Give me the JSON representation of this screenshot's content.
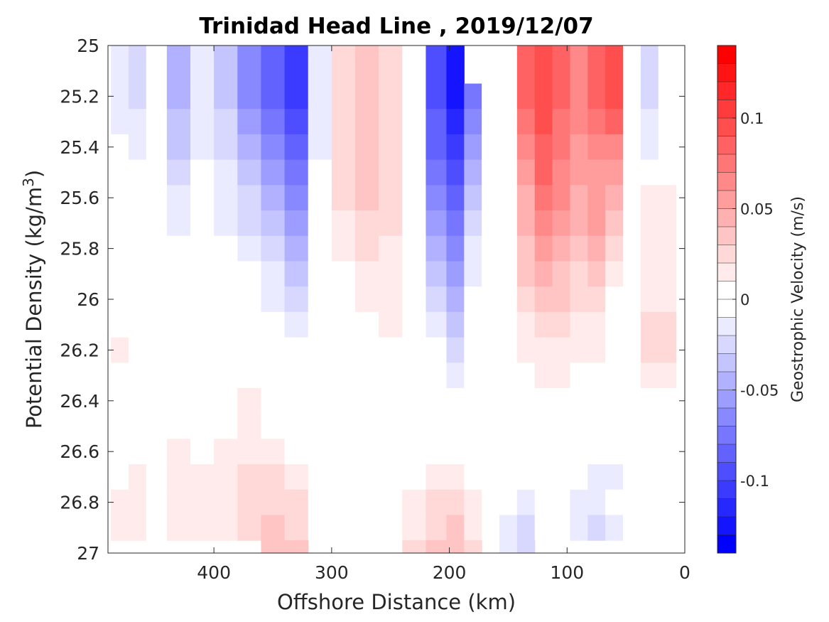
{
  "chart_data": {
    "type": "heatmap",
    "title": "Trinidad Head Line , 2019/12/07",
    "xlabel": "Offshore Distance (km)",
    "ylabel_main": "Potential Density (kg/m",
    "ylabel_sup": "3",
    "ylabel_end": ")",
    "xlim": [
      490,
      0
    ],
    "ylim": [
      25,
      27
    ],
    "x_reversed": true,
    "y_reversed": true,
    "x_ticks": [
      {
        "value": 400,
        "label": "400"
      },
      {
        "value": 300,
        "label": "300"
      },
      {
        "value": 200,
        "label": "200"
      },
      {
        "value": 100,
        "label": "100"
      },
      {
        "value": 0,
        "label": "0"
      }
    ],
    "y_ticks": [
      {
        "value": 25,
        "label": "25"
      },
      {
        "value": 25.2,
        "label": "25.2"
      },
      {
        "value": 25.4,
        "label": "25.4"
      },
      {
        "value": 25.6,
        "label": "25.6"
      },
      {
        "value": 25.8,
        "label": "25.8"
      },
      {
        "value": 26,
        "label": "26"
      },
      {
        "value": 26.2,
        "label": "26.2"
      },
      {
        "value": 26.4,
        "label": "26.4"
      },
      {
        "value": 26.6,
        "label": "26.6"
      },
      {
        "value": 26.8,
        "label": "26.8"
      },
      {
        "value": 27,
        "label": "27"
      }
    ],
    "colorbar": {
      "label": "Geostrophic Velocity (m/s)",
      "min": -0.14,
      "max": 0.14,
      "levels": 28,
      "colormap": "blue-white-red",
      "color_negative": "#0000ff",
      "color_zero": "#ffffff",
      "color_positive": "#ff0000",
      "ticks": [
        {
          "value": 0.1,
          "label": "0.1"
        },
        {
          "value": 0.05,
          "label": "0.05"
        },
        {
          "value": 0,
          "label": "0"
        },
        {
          "value": -0.05,
          "label": "-0.05"
        },
        {
          "value": -0.1,
          "label": "-0.1"
        }
      ]
    },
    "x": [
      480,
      465,
      450,
      430,
      410,
      390,
      370,
      350,
      330,
      310,
      290,
      270,
      250,
      230,
      210,
      195,
      180,
      165,
      150,
      135,
      120,
      105,
      90,
      75,
      60,
      45,
      30,
      15
    ],
    "y": [
      25.0,
      25.1,
      25.2,
      25.3,
      25.4,
      25.5,
      25.6,
      25.7,
      25.8,
      25.9,
      26.0,
      26.1,
      26.2,
      26.3,
      26.4,
      26.5,
      26.6,
      26.7,
      26.8,
      26.9,
      27.0
    ],
    "values": [
      [
        -0.02,
        -0.03,
        0.005,
        -0.05,
        -0.02,
        -0.04,
        -0.07,
        -0.09,
        -0.11,
        -0.02,
        0.02,
        0.03,
        0.02,
        0.0,
        -0.1,
        -0.13,
        null,
        null,
        0.0,
        0.08,
        0.09,
        0.08,
        0.06,
        0.08,
        0.09,
        0.0,
        -0.03,
        -0.01
      ],
      [
        -0.02,
        -0.03,
        0.005,
        -0.05,
        -0.02,
        -0.04,
        -0.07,
        -0.09,
        -0.11,
        -0.02,
        0.02,
        0.03,
        0.02,
        0.0,
        -0.1,
        -0.13,
        null,
        null,
        0.0,
        0.08,
        0.09,
        0.08,
        0.06,
        0.08,
        0.09,
        0.0,
        -0.03,
        -0.01
      ],
      [
        -0.02,
        -0.03,
        0.005,
        -0.05,
        -0.02,
        -0.04,
        -0.07,
        -0.09,
        -0.11,
        -0.02,
        0.02,
        0.03,
        0.02,
        0.0,
        -0.1,
        -0.13,
        -0.08,
        0.0,
        0.0,
        0.08,
        0.09,
        0.08,
        0.06,
        0.08,
        0.09,
        0.0,
        -0.03,
        -0.01
      ],
      [
        -0.015,
        -0.02,
        0.005,
        -0.04,
        -0.02,
        -0.03,
        -0.06,
        -0.08,
        -0.1,
        -0.02,
        0.02,
        0.03,
        0.02,
        0.0,
        -0.09,
        -0.12,
        -0.07,
        0.0,
        0.0,
        0.07,
        0.09,
        0.07,
        0.06,
        0.07,
        0.08,
        0.0,
        -0.02,
        -0.01
      ],
      [
        -0.01,
        -0.02,
        0.0,
        -0.04,
        -0.02,
        -0.03,
        -0.05,
        -0.07,
        -0.09,
        -0.015,
        0.02,
        0.03,
        0.02,
        0.0,
        -0.09,
        -0.11,
        -0.06,
        0.0,
        0.0,
        0.06,
        0.08,
        0.07,
        0.05,
        0.06,
        0.06,
        0.0,
        -0.02,
        0.0
      ],
      [
        -0.01,
        -0.01,
        0.0,
        -0.03,
        -0.01,
        -0.02,
        -0.04,
        -0.06,
        -0.08,
        -0.01,
        0.02,
        0.03,
        0.02,
        0.0,
        -0.08,
        -0.1,
        -0.05,
        0.0,
        0.0,
        0.05,
        0.08,
        0.06,
        0.05,
        0.05,
        0.05,
        0.0,
        -0.01,
        0.0
      ],
      [
        0.0,
        -0.005,
        0.0,
        -0.02,
        -0.01,
        -0.02,
        -0.03,
        -0.05,
        -0.07,
        -0.01,
        0.02,
        0.03,
        0.02,
        0.0,
        -0.07,
        -0.09,
        -0.04,
        0.0,
        0.0,
        0.04,
        0.07,
        0.06,
        0.04,
        0.05,
        0.04,
        0.0,
        0.01,
        0.01
      ],
      [
        0.0,
        0.0,
        0.0,
        -0.015,
        -0.01,
        -0.015,
        -0.03,
        -0.04,
        -0.06,
        -0.005,
        0.015,
        0.02,
        0.02,
        0.0,
        -0.06,
        -0.08,
        -0.03,
        0.0,
        0.0,
        0.04,
        0.06,
        0.05,
        0.04,
        0.05,
        0.03,
        0.0,
        0.01,
        0.01
      ],
      [
        0.0,
        0.0,
        0.0,
        -0.01,
        0.0,
        -0.01,
        -0.02,
        -0.03,
        -0.05,
        0.0,
        0.01,
        0.02,
        0.015,
        0.0,
        -0.05,
        -0.07,
        -0.02,
        0.0,
        0.0,
        0.03,
        0.05,
        0.04,
        0.03,
        0.04,
        0.02,
        0.0,
        0.01,
        0.01
      ],
      [
        0.0,
        0.0,
        0.0,
        0.0,
        0.0,
        0.0,
        -0.01,
        -0.02,
        -0.04,
        0.0,
        0.005,
        0.015,
        0.015,
        0.0,
        -0.04,
        -0.06,
        -0.015,
        0.0,
        0.0,
        0.03,
        0.04,
        0.03,
        0.025,
        0.03,
        0.01,
        0.0,
        0.015,
        0.015
      ],
      [
        0.0,
        0.0,
        0.0,
        0.0,
        0.0,
        0.0,
        -0.005,
        -0.015,
        -0.03,
        0.0,
        0.0,
        0.01,
        0.01,
        0.0,
        -0.03,
        -0.05,
        -0.01,
        0.0,
        0.0,
        0.02,
        0.03,
        0.03,
        0.02,
        0.02,
        0.0,
        0.0,
        0.015,
        0.015
      ],
      [
        0.0,
        0.0,
        0.0,
        0.0,
        0.0,
        0.0,
        0.0,
        -0.01,
        -0.02,
        0.0,
        0.0,
        0.005,
        0.01,
        0.0,
        -0.02,
        -0.04,
        -0.005,
        0.0,
        0.0,
        0.015,
        0.02,
        0.02,
        0.015,
        0.015,
        0.0,
        0.0,
        0.02,
        0.02
      ],
      [
        0.01,
        0.0,
        0.0,
        0.0,
        0.0,
        0.0,
        0.0,
        0.0,
        -0.01,
        0.0,
        0.0,
        0.0,
        0.005,
        0.0,
        -0.01,
        -0.03,
        0.0,
        0.0,
        0.0,
        0.01,
        0.015,
        0.015,
        0.01,
        0.01,
        0.0,
        0.0,
        0.02,
        0.02
      ],
      [
        0.005,
        0.0,
        0.0,
        0.0,
        0.0,
        0.0,
        0.005,
        0.0,
        0.0,
        0.0,
        0.0,
        0.0,
        0.005,
        0.0,
        0.0,
        -0.015,
        0.0,
        0.0,
        0.0,
        0.005,
        0.01,
        0.01,
        0.005,
        0.005,
        0.0,
        0.0,
        0.01,
        0.01
      ],
      [
        0.005,
        0.0,
        0.0,
        0.0,
        0.0,
        0.0,
        0.01,
        0.0,
        0.0,
        0.0,
        0.0,
        0.0,
        0.0,
        0.0,
        0.0,
        0.0,
        0.0,
        0.0,
        0.0,
        0.0,
        0.005,
        0.005,
        0.0,
        0.0,
        0.0,
        0.0,
        0.005,
        0.005
      ],
      [
        0.005,
        0.0,
        0.0,
        0.0,
        0.0,
        0.0,
        0.01,
        0.005,
        0.0,
        0.0,
        0.0,
        0.0,
        0.0,
        0.0,
        0.0,
        0.0,
        0.0,
        0.0,
        0.0,
        0.0,
        0.0,
        0.0,
        0.0,
        -0.005,
        -0.005,
        0.0,
        0.0,
        0.0
      ],
      [
        0.005,
        0.005,
        0.0,
        0.01,
        0.0,
        0.01,
        0.015,
        0.01,
        0.005,
        0.0,
        -0.005,
        0.0,
        0.0,
        0.0,
        0.005,
        0.005,
        0.0,
        0.0,
        0.0,
        0.0,
        -0.005,
        0.0,
        0.0,
        -0.01,
        -0.01,
        -0.005,
        0.0,
        0.0
      ],
      [
        0.005,
        0.01,
        0.0,
        0.01,
        0.01,
        0.01,
        0.02,
        0.02,
        0.015,
        0.0,
        -0.005,
        -0.005,
        0.0,
        0.0,
        0.01,
        0.01,
        0.005,
        0.0,
        0.0,
        -0.01,
        -0.01,
        -0.005,
        -0.005,
        -0.015,
        -0.015,
        -0.005,
        0.0,
        0.0
      ],
      [
        0.01,
        0.015,
        0.0,
        0.01,
        0.01,
        0.01,
        0.025,
        0.025,
        0.02,
        0.0,
        -0.01,
        -0.005,
        0.0,
        0.01,
        0.02,
        0.02,
        0.01,
        0.0,
        -0.01,
        -0.02,
        -0.01,
        -0.01,
        -0.015,
        -0.02,
        -0.01,
        -0.005,
        0.0,
        0.0
      ],
      [
        0.01,
        0.01,
        0.0,
        0.01,
        0.01,
        0.01,
        0.02,
        0.03,
        0.025,
        0.0,
        -0.01,
        -0.005,
        0.0,
        0.01,
        0.025,
        0.03,
        0.01,
        0.0,
        -0.02,
        -0.03,
        0.0,
        0.0,
        -0.02,
        -0.03,
        -0.02,
        -0.01,
        0.0,
        0.0
      ],
      [
        null,
        null,
        null,
        null,
        null,
        null,
        null,
        0.03,
        0.03,
        null,
        null,
        null,
        null,
        0.02,
        0.03,
        0.03,
        0.02,
        null,
        -0.02,
        -0.03,
        null,
        null,
        null,
        null,
        null,
        null,
        null,
        null
      ]
    ]
  }
}
